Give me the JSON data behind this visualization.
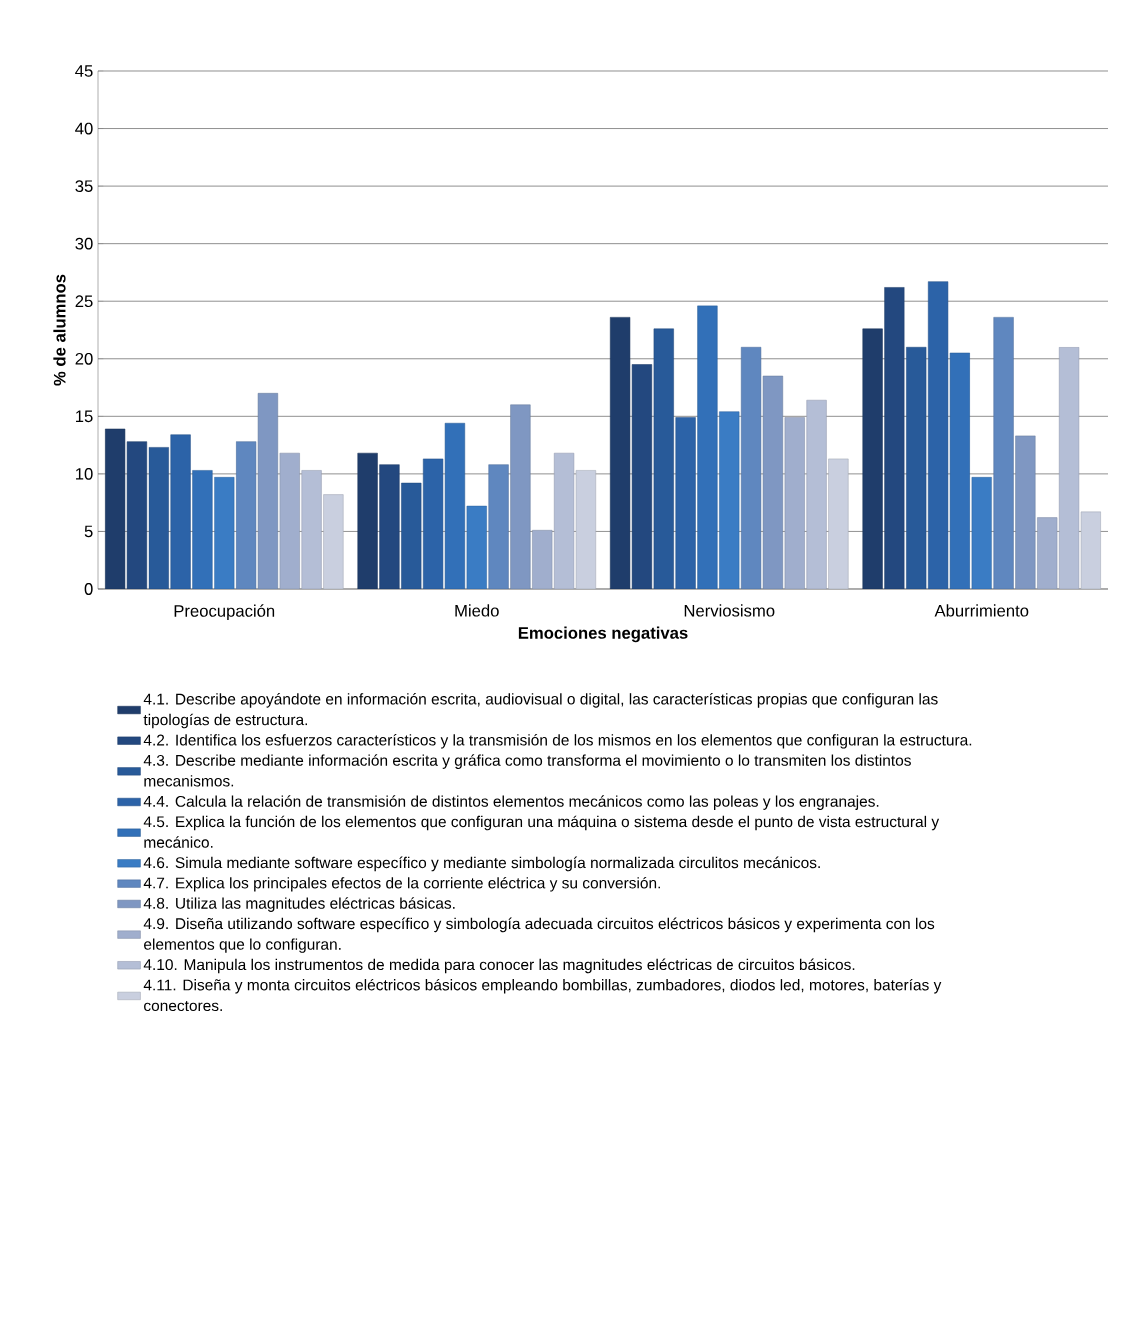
{
  "chart_data": {
    "type": "bar",
    "xlabel": "Emociones negativas",
    "ylabel": "% de alumnos",
    "categories": [
      "Preocupación",
      "Miedo",
      "Nerviosismo",
      "Aburrimiento"
    ],
    "ylim": [
      0,
      45
    ],
    "yticks": [
      0,
      5,
      10,
      15,
      20,
      25,
      30,
      35,
      40,
      45
    ],
    "grid": "y",
    "legend": "bottom",
    "series": [
      {
        "name": "4.1. Describe apoyándote en información escrita, audiovisual o digital, las características propias que configuran las tipologías de estructura.",
        "color": "#1f3d6b",
        "values": [
          13.9,
          11.8,
          23.6,
          22.6
        ]
      },
      {
        "name": "4.2. Identifica los esfuerzos característicos y la transmisión de los mismos en los elementos que configuran la estructura.",
        "color": "#23487f",
        "values": [
          12.8,
          10.8,
          19.5,
          26.2
        ]
      },
      {
        "name": "4.3. Describe mediante información escrita y gráfica como transforma el movimiento o lo transmiten los distintos mecanismos.",
        "color": "#285a99",
        "values": [
          12.3,
          9.2,
          22.6,
          21.0
        ]
      },
      {
        "name": "4.4. Calcula la relación de transmisión de distintos elementos mecánicos como las poleas y los engranajes.",
        "color": "#2c63a8",
        "values": [
          13.4,
          11.3,
          14.9,
          26.7
        ]
      },
      {
        "name": "4.5. Explica la función de los elementos que configuran una máquina o sistema desde el punto de vista estructural y mecánico.",
        "color": "#3270b8",
        "values": [
          10.3,
          14.4,
          24.6,
          20.5
        ]
      },
      {
        "name": "4.6. Simula mediante software específico y mediante simbología normalizada circulitos mecánicos.",
        "color": "#3a7cc4",
        "values": [
          9.7,
          7.2,
          15.4,
          9.7
        ]
      },
      {
        "name": "4.7. Explica los principales efectos de la corriente eléctrica y su conversión.",
        "color": "#5f87bf",
        "values": [
          12.8,
          10.8,
          21.0,
          23.6
        ]
      },
      {
        "name": "4.8. Utiliza las magnitudes eléctricas básicas.",
        "color": "#7f97c2",
        "values": [
          17.0,
          16.0,
          18.5,
          13.3
        ]
      },
      {
        "name": "4.9. Diseña utilizando software específico y simbología adecuada circuitos eléctricos básicos y experimenta con los elementos que lo configuran.",
        "color": "#a0aecd",
        "values": [
          11.8,
          5.1,
          14.9,
          6.2
        ]
      },
      {
        "name": "4.10. Manipula los instrumentos de medida para conocer las magnitudes eléctricas de circuitos básicos.",
        "color": "#b4bed6",
        "values": [
          10.3,
          11.8,
          16.4,
          21.0
        ]
      },
      {
        "name": "4.11. Diseña y monta circuitos eléctricos básicos empleando bombillas, zumbadores, diodos led, motores, baterías y conectores.",
        "color": "#c9cfdf",
        "values": [
          8.2,
          10.3,
          11.3,
          6.7
        ]
      }
    ]
  }
}
